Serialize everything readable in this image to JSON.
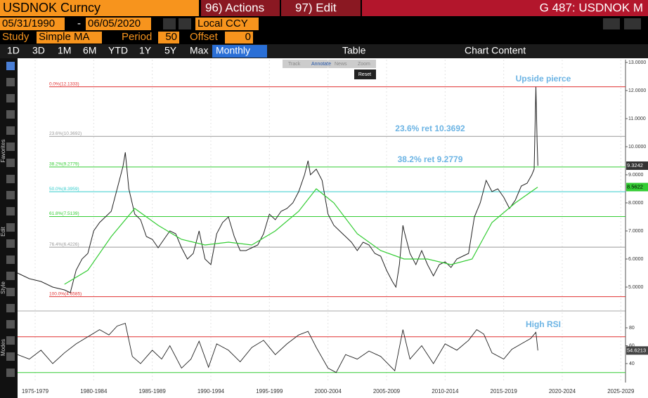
{
  "header": {
    "security": "USDNOK Curncy",
    "actions": "96) Actions",
    "edit": "97) Edit",
    "function": "G 487: USDNOK M"
  },
  "controls": {
    "start_date": "05/31/1990",
    "end_date": "06/05/2020",
    "currency": "Local CCY",
    "study_label": "Study",
    "study": "Simple MA",
    "period_label": "Period",
    "period": 50,
    "offset_label": "Offset",
    "offset": 0
  },
  "tabs": [
    "1D",
    "3D",
    "1M",
    "6M",
    "YTD",
    "1Y",
    "5Y",
    "Max"
  ],
  "frequency": "Monthly",
  "table": "Table",
  "chart_content": "Chart Content",
  "mini_toolbar": [
    "Track",
    "Annotate",
    "News",
    "Zoom"
  ],
  "reset": "Reset",
  "side_labels": [
    "Favorites",
    "Edit",
    "Style",
    "Modes"
  ],
  "chart_data": {
    "type": "line",
    "xlim": [
      1976,
      2027.9
    ],
    "xticks": [
      {
        "value": 1977.5,
        "label": "1975-1979"
      },
      {
        "value": 1982.5,
        "label": "1980-1984"
      },
      {
        "value": 1987.5,
        "label": "1985-1989"
      },
      {
        "value": 1992.5,
        "label": "1990-1994"
      },
      {
        "value": 1997.5,
        "label": "1995-1999"
      },
      {
        "value": 2002.5,
        "label": "2000-2004"
      },
      {
        "value": 2007.5,
        "label": "2005-2009"
      },
      {
        "value": 2012.5,
        "label": "2010-2014"
      },
      {
        "value": 2017.5,
        "label": "2015-2019"
      },
      {
        "value": 2022.5,
        "label": "2020-2024"
      },
      {
        "value": 2027.5,
        "label": "2025-2029"
      }
    ],
    "ylim": [
      4.225,
      13.1
    ],
    "yticks": [
      {
        "value": 5,
        "label": "5.0000"
      },
      {
        "value": 6,
        "label": "6.0000"
      },
      {
        "value": 7,
        "label": "7.0000"
      },
      {
        "value": 8,
        "label": "8.0000"
      },
      {
        "value": 9,
        "label": "9.0000"
      },
      {
        "value": 10,
        "label": "10.0000"
      },
      {
        "value": 11,
        "label": "11.0000"
      },
      {
        "value": 12,
        "label": "12.0000"
      },
      {
        "value": 13,
        "label": "13.0000"
      }
    ],
    "series": [
      {
        "name": "USDNOK",
        "color": "#222222",
        "x": [
          1976,
          1977,
          1978,
          1979,
          1980,
          1980.5,
          1981,
          1981.5,
          1982,
          1982.5,
          1983,
          1983.5,
          1984,
          1984.5,
          1985,
          1985.2,
          1985.5,
          1986,
          1986.5,
          1987,
          1987.5,
          1988,
          1988.5,
          1989,
          1989.5,
          1990,
          1990.5,
          1991,
          1991.5,
          1992,
          1992.5,
          1993,
          1993.5,
          1994,
          1994.5,
          1995,
          1995.5,
          1996,
          1996.5,
          1997,
          1997.5,
          1998,
          1998.5,
          1999,
          1999.5,
          2000,
          2000.5,
          2000.8,
          2001,
          2001.5,
          2002,
          2002.5,
          2003,
          2003.5,
          2004,
          2004.5,
          2005,
          2005.5,
          2006,
          2006.5,
          2007,
          2007.5,
          2008,
          2008.3,
          2008.6,
          2008.9,
          2009,
          2009.5,
          2010,
          2010.5,
          2011,
          2011.5,
          2012,
          2012.5,
          2013,
          2013.5,
          2014,
          2014.5,
          2015,
          2015.5,
          2016,
          2016.5,
          2017,
          2017.5,
          2018,
          2018.5,
          2019,
          2019.5,
          2019.9,
          2020.1,
          2020.25,
          2020.35,
          2020.42
        ],
        "values": [
          5.5,
          5.3,
          5.2,
          5.0,
          4.9,
          4.8,
          5.6,
          6.0,
          6.2,
          7.0,
          7.3,
          7.5,
          7.7,
          8.5,
          9.3,
          9.8,
          8.5,
          7.6,
          7.4,
          6.8,
          6.7,
          6.4,
          6.7,
          7.0,
          6.9,
          6.4,
          6.0,
          6.2,
          7.0,
          6.0,
          5.8,
          6.9,
          7.3,
          7.5,
          6.8,
          6.3,
          6.3,
          6.4,
          6.5,
          6.9,
          7.6,
          7.4,
          7.7,
          7.8,
          8.0,
          8.4,
          9.0,
          9.5,
          9.0,
          9.2,
          8.8,
          7.6,
          7.2,
          7.0,
          6.8,
          6.6,
          6.3,
          6.6,
          6.5,
          6.2,
          6.1,
          5.6,
          5.2,
          5.0,
          5.8,
          7.2,
          7.0,
          6.2,
          5.8,
          6.3,
          5.8,
          5.4,
          5.8,
          5.9,
          5.7,
          6.0,
          6.1,
          6.2,
          7.5,
          8.0,
          8.8,
          8.4,
          8.5,
          8.2,
          7.8,
          8.1,
          8.6,
          8.7,
          9.0,
          9.2,
          12.13,
          10.2,
          9.32
        ]
      },
      {
        "name": "Simple MA",
        "color": "#33cc33",
        "x": [
          1980,
          1982,
          1984,
          1986,
          1988,
          1990,
          1992,
          1994,
          1996,
          1998,
          2000,
          2001.5,
          2003,
          2005,
          2007,
          2009,
          2011,
          2013,
          2014.8,
          2016.5,
          2018.5,
          2020.4
        ],
        "values": [
          5.1,
          5.6,
          6.8,
          7.8,
          7.2,
          6.7,
          6.5,
          6.6,
          6.5,
          7.0,
          7.7,
          8.5,
          8.0,
          6.9,
          6.3,
          6.0,
          6.0,
          5.8,
          6.0,
          7.3,
          8.0,
          8.56
        ]
      }
    ],
    "fib_levels": [
      {
        "label": "0.0%(12.1333)",
        "value": 12.1333,
        "color": "#e03030"
      },
      {
        "label": "23.6%(10.3692)",
        "value": 10.3692,
        "color": "#999999"
      },
      {
        "label": "38.2%(9.2779)",
        "value": 9.2779,
        "color": "#33cc33"
      },
      {
        "label": "50.0%(8.3959)",
        "value": 8.3959,
        "color": "#33cccc"
      },
      {
        "label": "61.8%(7.5139)",
        "value": 7.5139,
        "color": "#33cc33"
      },
      {
        "label": "76.4%(6.4226)",
        "value": 6.4226,
        "color": "#999999"
      },
      {
        "label": "100.0%(4.6585)",
        "value": 4.6585,
        "color": "#e03030"
      }
    ],
    "annotations": [
      "Upside pierce",
      "23.6% ret 10.3692",
      "38.2% ret 9.2779",
      "High RSI"
    ],
    "last_price": 9.3242,
    "last_ma": 8.5622,
    "rsi": {
      "ylim": [
        18.8,
        95.7
      ],
      "yticks": [
        40,
        60,
        80
      ],
      "bands": [
        {
          "value": 70,
          "color": "#e03030"
        },
        {
          "value": 30,
          "color": "#33cc33"
        }
      ],
      "last": 54.6213,
      "color": "#222222",
      "x": [
        1976,
        1977,
        1978,
        1979,
        1980,
        1981,
        1982,
        1983,
        1983.8,
        1984.5,
        1985.2,
        1985.8,
        1986.5,
        1987.5,
        1988.3,
        1989,
        1990,
        1990.8,
        1991.5,
        1992.3,
        1993,
        1994,
        1995,
        1996,
        1997,
        1998,
        1999,
        2000,
        2000.8,
        2001.5,
        2002.5,
        2003.2,
        2004,
        2005,
        2006,
        2007,
        2008.2,
        2008.9,
        2009.5,
        2010.5,
        2011.5,
        2012.5,
        2013.5,
        2014.5,
        2015.2,
        2015.8,
        2016.5,
        2017.5,
        2018.2,
        2019,
        2019.8,
        2020.25,
        2020.42
      ],
      "values": [
        50,
        45,
        55,
        40,
        52,
        62,
        70,
        78,
        72,
        82,
        85,
        48,
        40,
        55,
        45,
        60,
        35,
        45,
        65,
        36,
        62,
        55,
        42,
        58,
        66,
        50,
        62,
        72,
        76,
        58,
        35,
        30,
        50,
        45,
        54,
        48,
        32,
        78,
        45,
        60,
        40,
        62,
        55,
        66,
        78,
        73,
        52,
        45,
        56,
        62,
        68,
        75,
        54.6213
      ]
    }
  }
}
